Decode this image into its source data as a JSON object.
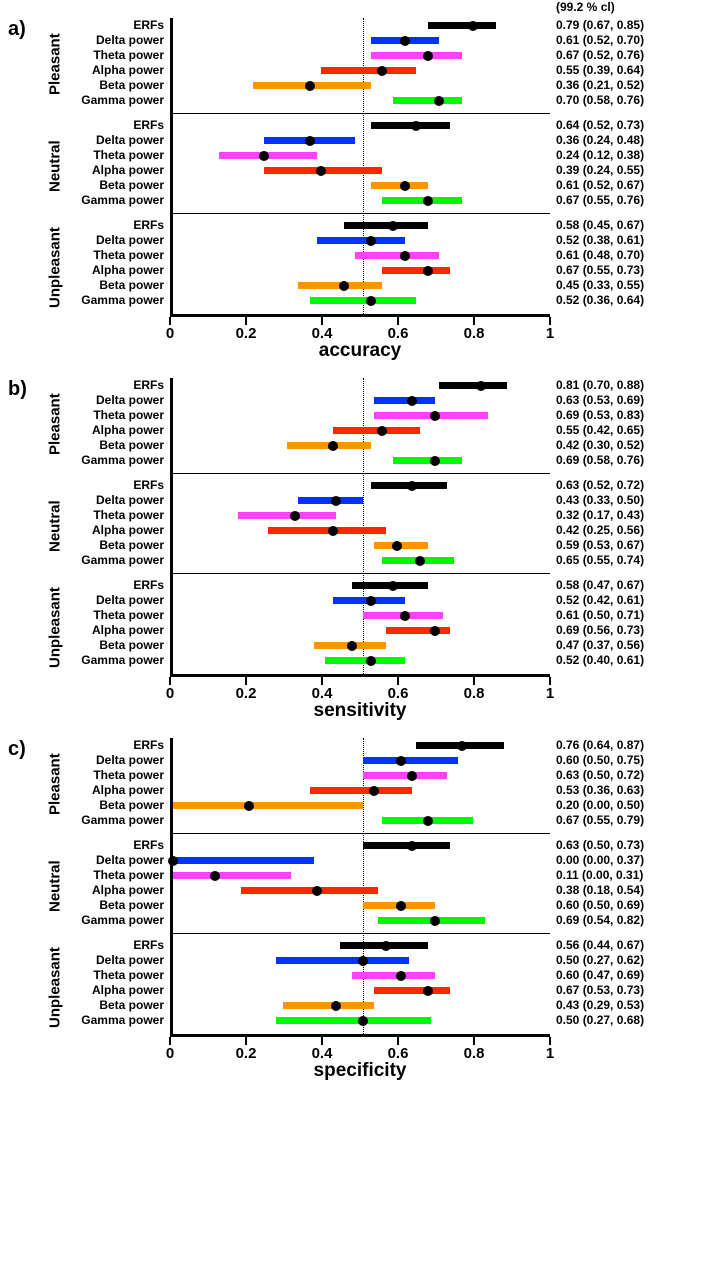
{
  "cl_label": "(99.2 % cl)",
  "measures": [
    "ERFs",
    "Delta power",
    "Theta power",
    "Alpha power",
    "Beta power",
    "Gamma power"
  ],
  "measure_colors": [
    "#000000",
    "#0433ff",
    "#ff40ff",
    "#ff2600",
    "#ff9300",
    "#00f900"
  ],
  "groups": [
    "Pleasant",
    "Neutral",
    "Unpleasant"
  ],
  "xticks": [
    0,
    0.2,
    0.4,
    0.6,
    0.8,
    1
  ],
  "xtick_labels": [
    "0",
    "0.2",
    "0.4",
    "0.6",
    "0.8",
    "1"
  ],
  "refline": 0.5,
  "dot_color": "#000000",
  "panels": [
    {
      "letter": "a)",
      "xlabel": "accuracy",
      "data": [
        [
          {
            "pt": 0.79,
            "lo": 0.67,
            "hi": 0.85
          },
          {
            "pt": 0.61,
            "lo": 0.52,
            "hi": 0.7
          },
          {
            "pt": 0.67,
            "lo": 0.52,
            "hi": 0.76
          },
          {
            "pt": 0.55,
            "lo": 0.39,
            "hi": 0.64
          },
          {
            "pt": 0.36,
            "lo": 0.21,
            "hi": 0.52
          },
          {
            "pt": 0.7,
            "lo": 0.58,
            "hi": 0.76
          }
        ],
        [
          {
            "pt": 0.64,
            "lo": 0.52,
            "hi": 0.73
          },
          {
            "pt": 0.36,
            "lo": 0.24,
            "hi": 0.48
          },
          {
            "pt": 0.24,
            "lo": 0.12,
            "hi": 0.38
          },
          {
            "pt": 0.39,
            "lo": 0.24,
            "hi": 0.55
          },
          {
            "pt": 0.61,
            "lo": 0.52,
            "hi": 0.67
          },
          {
            "pt": 0.67,
            "lo": 0.55,
            "hi": 0.76
          }
        ],
        [
          {
            "pt": 0.58,
            "lo": 0.45,
            "hi": 0.67
          },
          {
            "pt": 0.52,
            "lo": 0.38,
            "hi": 0.61
          },
          {
            "pt": 0.61,
            "lo": 0.48,
            "hi": 0.7
          },
          {
            "pt": 0.67,
            "lo": 0.55,
            "hi": 0.73
          },
          {
            "pt": 0.45,
            "lo": 0.33,
            "hi": 0.55
          },
          {
            "pt": 0.52,
            "lo": 0.36,
            "hi": 0.64
          }
        ]
      ]
    },
    {
      "letter": "b)",
      "xlabel": "sensitivity",
      "data": [
        [
          {
            "pt": 0.81,
            "lo": 0.7,
            "hi": 0.88
          },
          {
            "pt": 0.63,
            "lo": 0.53,
            "hi": 0.69
          },
          {
            "pt": 0.69,
            "lo": 0.53,
            "hi": 0.83
          },
          {
            "pt": 0.55,
            "lo": 0.42,
            "hi": 0.65
          },
          {
            "pt": 0.42,
            "lo": 0.3,
            "hi": 0.52
          },
          {
            "pt": 0.69,
            "lo": 0.58,
            "hi": 0.76
          }
        ],
        [
          {
            "pt": 0.63,
            "lo": 0.52,
            "hi": 0.72
          },
          {
            "pt": 0.43,
            "lo": 0.33,
            "hi": 0.5
          },
          {
            "pt": 0.32,
            "lo": 0.17,
            "hi": 0.43
          },
          {
            "pt": 0.42,
            "lo": 0.25,
            "hi": 0.56
          },
          {
            "pt": 0.59,
            "lo": 0.53,
            "hi": 0.67
          },
          {
            "pt": 0.65,
            "lo": 0.55,
            "hi": 0.74
          }
        ],
        [
          {
            "pt": 0.58,
            "lo": 0.47,
            "hi": 0.67
          },
          {
            "pt": 0.52,
            "lo": 0.42,
            "hi": 0.61
          },
          {
            "pt": 0.61,
            "lo": 0.5,
            "hi": 0.71
          },
          {
            "pt": 0.69,
            "lo": 0.56,
            "hi": 0.73
          },
          {
            "pt": 0.47,
            "lo": 0.37,
            "hi": 0.56
          },
          {
            "pt": 0.52,
            "lo": 0.4,
            "hi": 0.61
          }
        ]
      ]
    },
    {
      "letter": "c)",
      "xlabel": "specificity",
      "data": [
        [
          {
            "pt": 0.76,
            "lo": 0.64,
            "hi": 0.87
          },
          {
            "pt": 0.6,
            "lo": 0.5,
            "hi": 0.75
          },
          {
            "pt": 0.63,
            "lo": 0.5,
            "hi": 0.72
          },
          {
            "pt": 0.53,
            "lo": 0.36,
            "hi": 0.63
          },
          {
            "pt": 0.2,
            "lo": 0.0,
            "hi": 0.5
          },
          {
            "pt": 0.67,
            "lo": 0.55,
            "hi": 0.79
          }
        ],
        [
          {
            "pt": 0.63,
            "lo": 0.5,
            "hi": 0.73
          },
          {
            "pt": 0.0,
            "lo": 0.0,
            "hi": 0.37
          },
          {
            "pt": 0.11,
            "lo": 0.0,
            "hi": 0.31
          },
          {
            "pt": 0.38,
            "lo": 0.18,
            "hi": 0.54
          },
          {
            "pt": 0.6,
            "lo": 0.5,
            "hi": 0.69
          },
          {
            "pt": 0.69,
            "lo": 0.54,
            "hi": 0.82
          }
        ],
        [
          {
            "pt": 0.56,
            "lo": 0.44,
            "hi": 0.67
          },
          {
            "pt": 0.5,
            "lo": 0.27,
            "hi": 0.62
          },
          {
            "pt": 0.6,
            "lo": 0.47,
            "hi": 0.69
          },
          {
            "pt": 0.67,
            "lo": 0.53,
            "hi": 0.73
          },
          {
            "pt": 0.43,
            "lo": 0.29,
            "hi": 0.53
          },
          {
            "pt": 0.5,
            "lo": 0.27,
            "hi": 0.68
          }
        ]
      ]
    }
  ]
}
